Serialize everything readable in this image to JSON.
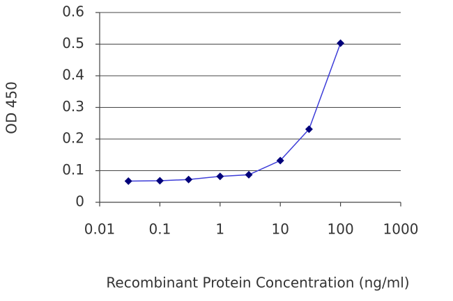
{
  "chart_data": {
    "type": "line",
    "x_label": "Recombinant Protein Concentration (ng/ml)",
    "y_label": "OD 450",
    "x": [
      0.03,
      0.1,
      0.3,
      1,
      3,
      10,
      30,
      100
    ],
    "values": [
      0.067,
      0.068,
      0.072,
      0.082,
      0.087,
      0.132,
      0.231,
      0.503
    ],
    "color": "#3c3cd8",
    "marker_color": "#00007a",
    "xscale": "log",
    "xlim": [
      0.01,
      1000
    ],
    "xticks": [
      0.01,
      0.1,
      1,
      10,
      100,
      1000
    ],
    "ylim": [
      0,
      0.6
    ],
    "yticks": [
      0,
      0.1,
      0.2,
      0.3,
      0.4,
      0.5,
      0.6
    ],
    "grid": true
  }
}
